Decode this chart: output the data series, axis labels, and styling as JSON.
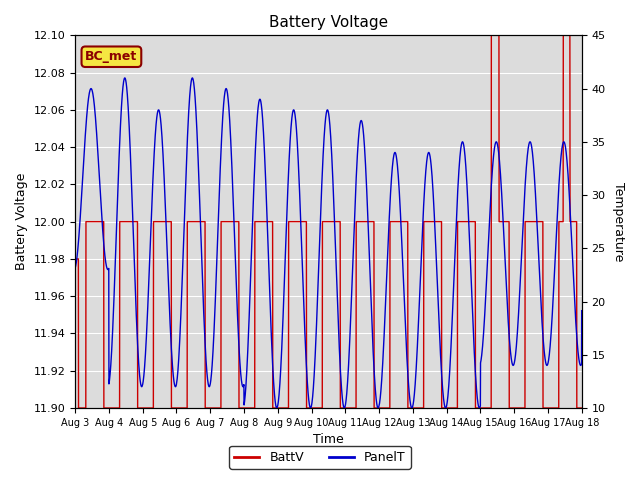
{
  "title": "Battery Voltage",
  "xlabel": "Time",
  "ylabel_left": "Battery Voltage",
  "ylabel_right": "Temperature",
  "ylim_left": [
    11.9,
    12.1
  ],
  "ylim_right": [
    10,
    45
  ],
  "xtick_labels": [
    "Aug 3",
    "Aug 4",
    "Aug 5",
    "Aug 6",
    "Aug 7",
    "Aug 8",
    "Aug 9",
    "Aug 10",
    "Aug 11",
    "Aug 12",
    "Aug 13",
    "Aug 14",
    "Aug 15",
    "Aug 16",
    "Aug 17",
    "Aug 18"
  ],
  "annotation_text": "BC_met",
  "annotation_color": "#8B0000",
  "annotation_bg": "#f5e642",
  "background_color": "#dcdcdc",
  "battv_color": "#cc0000",
  "panelt_color": "#0000cc",
  "legend_battv": "BattV",
  "legend_panelt": "PanelT",
  "num_days": 15,
  "yticks_left": [
    11.9,
    11.92,
    11.94,
    11.96,
    11.98,
    12.0,
    12.02,
    12.04,
    12.06,
    12.08,
    12.1
  ],
  "yticks_right": [
    10,
    15,
    20,
    25,
    30,
    35,
    40,
    45
  ]
}
